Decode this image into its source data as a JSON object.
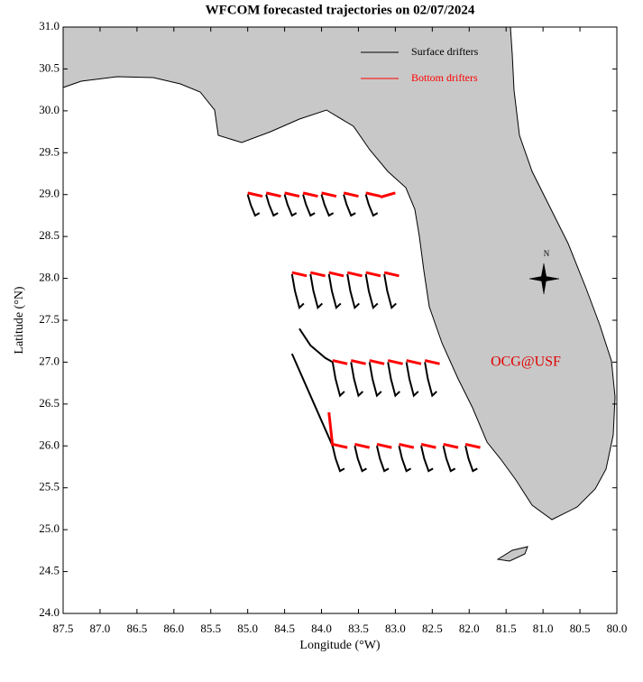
{
  "chart_data": {
    "type": "trajectory",
    "title": "WFCOM forecasted trajectories on 02/07/2024",
    "x_label": "Longitude (°W)",
    "y_label": "Latitude (°N)",
    "annotation": "OCG@USF",
    "compass_label": "N",
    "xlim": [
      87.5,
      80.0
    ],
    "ylim": [
      24.0,
      31.0
    ],
    "xticks": [
      87.5,
      {
        "value": 87,
        "label": "87.0"
      },
      86.5,
      {
        "value": 86,
        "label": "86.0"
      },
      85.5,
      {
        "value": 85,
        "label": "85.0"
      },
      84.5,
      {
        "value": 84,
        "label": "84.0"
      },
      83.5,
      {
        "value": 83,
        "label": "83.0"
      },
      82.5,
      {
        "value": 82,
        "label": "82.0"
      },
      81.5,
      {
        "value": 81,
        "label": "81.0"
      },
      80.5,
      {
        "value": 80,
        "label": "80.0"
      }
    ],
    "yticks": [
      {
        "value": 24,
        "label": "24.0"
      },
      24.5,
      {
        "value": 25,
        "label": "25.0"
      },
      25.5,
      {
        "value": 26,
        "label": "26.0"
      },
      26.5,
      {
        "value": 27,
        "label": "27.0"
      },
      27.5,
      {
        "value": 28,
        "label": "28.0"
      },
      28.5,
      {
        "value": 29,
        "label": "29.0"
      },
      29.5,
      {
        "value": 30,
        "label": "30.0"
      },
      30.5,
      {
        "value": 31,
        "label": "31.0"
      }
    ],
    "series": [
      {
        "name": "Surface drifters",
        "color": "#000000",
        "tracks": [
          {
            "x": [
              85.0,
              84.96,
              84.9,
              84.84
            ],
            "y": [
              29.0,
              28.88,
              28.75,
              28.78
            ]
          },
          {
            "x": [
              84.75,
              84.71,
              84.65,
              84.59
            ],
            "y": [
              29.0,
              28.88,
              28.75,
              28.78
            ]
          },
          {
            "x": [
              84.5,
              84.46,
              84.4,
              84.34
            ],
            "y": [
              29.0,
              28.88,
              28.75,
              28.78
            ]
          },
          {
            "x": [
              84.25,
              84.21,
              84.15,
              84.09
            ],
            "y": [
              29.0,
              28.88,
              28.75,
              28.78
            ]
          },
          {
            "x": [
              84.0,
              83.96,
              83.9,
              83.84
            ],
            "y": [
              29.0,
              28.88,
              28.75,
              28.78
            ]
          },
          {
            "x": [
              83.7,
              83.66,
              83.6,
              83.54
            ],
            "y": [
              29.0,
              28.88,
              28.75,
              28.78
            ]
          },
          {
            "x": [
              83.4,
              83.36,
              83.3,
              83.24
            ],
            "y": [
              29.0,
              28.88,
              28.75,
              28.78
            ]
          },
          {
            "x": [
              84.4,
              84.36,
              84.3,
              84.24
            ],
            "y": [
              28.05,
              27.85,
              27.65,
              27.7
            ]
          },
          {
            "x": [
              84.15,
              84.11,
              84.05,
              83.99
            ],
            "y": [
              28.05,
              27.85,
              27.65,
              27.7
            ]
          },
          {
            "x": [
              83.9,
              83.86,
              83.8,
              83.74
            ],
            "y": [
              28.05,
              27.85,
              27.65,
              27.7
            ]
          },
          {
            "x": [
              83.65,
              83.61,
              83.55,
              83.49
            ],
            "y": [
              28.05,
              27.85,
              27.65,
              27.7
            ]
          },
          {
            "x": [
              83.4,
              83.36,
              83.3,
              83.24
            ],
            "y": [
              28.05,
              27.85,
              27.65,
              27.7
            ]
          },
          {
            "x": [
              83.15,
              83.11,
              83.05,
              82.99
            ],
            "y": [
              28.05,
              27.85,
              27.65,
              27.7
            ]
          },
          {
            "x": [
              84.3,
              84.15,
              83.95,
              83.85
            ],
            "y": [
              27.4,
              27.2,
              27.05,
              27.0
            ]
          },
          {
            "x": [
              84.4,
              84.2,
              84.0,
              83.85
            ],
            "y": [
              27.1,
              26.7,
              26.3,
              26.0
            ]
          },
          {
            "x": [
              83.85,
              83.81,
              83.75,
              83.69
            ],
            "y": [
              27.0,
              26.8,
              26.6,
              26.65
            ]
          },
          {
            "x": [
              83.6,
              83.56,
              83.5,
              83.44
            ],
            "y": [
              27.0,
              26.8,
              26.6,
              26.65
            ]
          },
          {
            "x": [
              83.35,
              83.31,
              83.25,
              83.19
            ],
            "y": [
              27.0,
              26.8,
              26.6,
              26.65
            ]
          },
          {
            "x": [
              83.1,
              83.06,
              83.0,
              82.94
            ],
            "y": [
              27.0,
              26.8,
              26.6,
              26.65
            ]
          },
          {
            "x": [
              82.85,
              82.81,
              82.75,
              82.69
            ],
            "y": [
              27.0,
              26.8,
              26.6,
              26.65
            ]
          },
          {
            "x": [
              82.6,
              82.56,
              82.5,
              82.44
            ],
            "y": [
              27.0,
              26.8,
              26.6,
              26.65
            ]
          },
          {
            "x": [
              83.85,
              83.81,
              83.75,
              83.69
            ],
            "y": [
              26.0,
              25.85,
              25.7,
              25.73
            ]
          },
          {
            "x": [
              83.55,
              83.51,
              83.45,
              83.39
            ],
            "y": [
              26.0,
              25.85,
              25.7,
              25.73
            ]
          },
          {
            "x": [
              83.25,
              83.21,
              83.15,
              83.09
            ],
            "y": [
              26.0,
              25.85,
              25.7,
              25.73
            ]
          },
          {
            "x": [
              82.95,
              82.91,
              82.85,
              82.79
            ],
            "y": [
              26.0,
              25.85,
              25.7,
              25.73
            ]
          },
          {
            "x": [
              82.65,
              82.61,
              82.55,
              82.49
            ],
            "y": [
              26.0,
              25.85,
              25.7,
              25.73
            ]
          },
          {
            "x": [
              82.35,
              82.31,
              82.25,
              82.19
            ],
            "y": [
              26.0,
              25.85,
              25.7,
              25.73
            ]
          },
          {
            "x": [
              82.05,
              82.01,
              81.95,
              81.89
            ],
            "y": [
              26.0,
              25.85,
              25.7,
              25.73
            ]
          }
        ]
      },
      {
        "name": "Bottom drifters",
        "color": "#ff0000",
        "tracks": [
          {
            "x": [
              85.0,
              84.8
            ],
            "y": [
              29.02,
              28.98
            ]
          },
          {
            "x": [
              84.75,
              84.55
            ],
            "y": [
              29.02,
              28.98
            ]
          },
          {
            "x": [
              84.5,
              84.3
            ],
            "y": [
              29.02,
              28.98
            ]
          },
          {
            "x": [
              84.25,
              84.05
            ],
            "y": [
              29.02,
              28.98
            ]
          },
          {
            "x": [
              84.0,
              83.8
            ],
            "y": [
              29.02,
              28.98
            ]
          },
          {
            "x": [
              83.7,
              83.5
            ],
            "y": [
              29.02,
              28.98
            ]
          },
          {
            "x": [
              83.4,
              83.2
            ],
            "y": [
              29.02,
              28.98
            ]
          },
          {
            "x": [
              83.2,
              83.0
            ],
            "y": [
              28.97,
              29.02
            ]
          },
          {
            "x": [
              84.4,
              84.2
            ],
            "y": [
              28.07,
              28.03
            ]
          },
          {
            "x": [
              84.15,
              83.95
            ],
            "y": [
              28.07,
              28.03
            ]
          },
          {
            "x": [
              83.9,
              83.7
            ],
            "y": [
              28.07,
              28.03
            ]
          },
          {
            "x": [
              83.65,
              83.45
            ],
            "y": [
              28.07,
              28.03
            ]
          },
          {
            "x": [
              83.4,
              83.2
            ],
            "y": [
              28.07,
              28.03
            ]
          },
          {
            "x": [
              83.15,
              82.95
            ],
            "y": [
              28.07,
              28.03
            ]
          },
          {
            "x": [
              83.85,
              83.65
            ],
            "y": [
              27.02,
              26.98
            ]
          },
          {
            "x": [
              83.6,
              83.4
            ],
            "y": [
              27.02,
              26.98
            ]
          },
          {
            "x": [
              83.35,
              83.15
            ],
            "y": [
              27.02,
              26.98
            ]
          },
          {
            "x": [
              83.1,
              82.9
            ],
            "y": [
              27.02,
              26.98
            ]
          },
          {
            "x": [
              82.85,
              82.65
            ],
            "y": [
              27.02,
              26.98
            ]
          },
          {
            "x": [
              82.6,
              82.4
            ],
            "y": [
              27.02,
              26.98
            ]
          },
          {
            "x": [
              83.9,
              83.85
            ],
            "y": [
              26.4,
              26.0
            ]
          },
          {
            "x": [
              83.85,
              83.65
            ],
            "y": [
              26.02,
              25.98
            ]
          },
          {
            "x": [
              83.55,
              83.35
            ],
            "y": [
              26.02,
              25.98
            ]
          },
          {
            "x": [
              83.25,
              83.05
            ],
            "y": [
              26.02,
              25.98
            ]
          },
          {
            "x": [
              82.95,
              82.75
            ],
            "y": [
              26.02,
              25.98
            ]
          },
          {
            "x": [
              82.65,
              82.45
            ],
            "y": [
              26.02,
              25.98
            ]
          },
          {
            "x": [
              82.35,
              82.15
            ],
            "y": [
              26.02,
              25.98
            ]
          },
          {
            "x": [
              82.05,
              81.85
            ],
            "y": [
              26.02,
              25.98
            ]
          }
        ]
      }
    ]
  }
}
